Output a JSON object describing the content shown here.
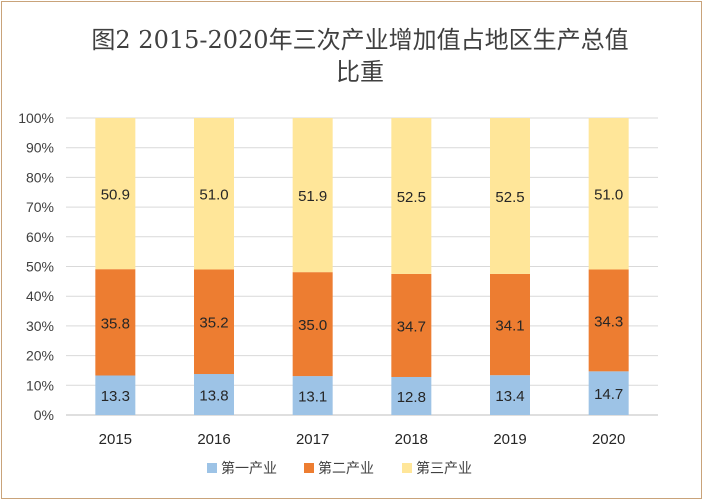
{
  "chart_data": {
    "type": "bar",
    "stacked": true,
    "title_lines": [
      "图2 2015-2020年三次产业增加值占地区生产总值",
      "比重"
    ],
    "categories": [
      "2015",
      "2016",
      "2017",
      "2018",
      "2019",
      "2020"
    ],
    "series": [
      {
        "name": "第一产业",
        "color": "#9dc3e6",
        "values": [
          13.3,
          13.8,
          13.1,
          12.8,
          13.4,
          14.7
        ]
      },
      {
        "name": "第二产业",
        "color": "#ed7d31",
        "values": [
          35.8,
          35.2,
          35.0,
          34.7,
          34.1,
          34.3
        ]
      },
      {
        "name": "第三产业",
        "color": "#ffe699",
        "values": [
          50.9,
          51.0,
          51.9,
          52.5,
          52.5,
          51.0
        ]
      }
    ],
    "y_ticks": [
      "0%",
      "10%",
      "20%",
      "30%",
      "40%",
      "50%",
      "60%",
      "70%",
      "80%",
      "90%",
      "100%"
    ],
    "ylim": [
      0,
      100
    ],
    "grid": true,
    "legend_position": "bottom"
  }
}
